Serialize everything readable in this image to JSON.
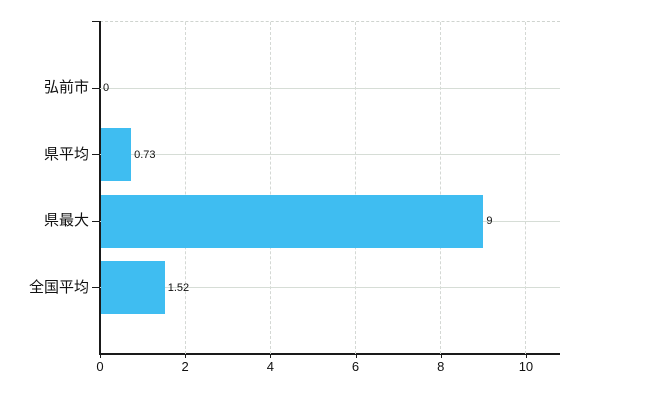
{
  "chart_data": {
    "type": "bar",
    "orientation": "horizontal",
    "title": "",
    "xlabel": "",
    "ylabel": "",
    "categories": [
      "弘前市",
      "県平均",
      "県最大",
      "全国平均"
    ],
    "values": [
      0,
      0.73,
      9,
      1.52
    ],
    "value_labels": [
      "0",
      "0.73",
      "9",
      "1.52"
    ],
    "x_ticks": [
      0,
      2,
      4,
      6,
      8,
      10
    ],
    "x_tick_labels": [
      "0",
      "2",
      "4",
      "6",
      "8",
      "10"
    ],
    "xlim": [
      0,
      10.8
    ],
    "grid": true,
    "legend": "none",
    "colors": {
      "bar": "#3fbdf1",
      "axis": "#1a1a1a",
      "h_gridline": "#d6ddd6",
      "v_gridline": "#d4d8d4",
      "top_border": "#cfd4cf",
      "text": "#111111",
      "background": "#ffffff"
    }
  }
}
